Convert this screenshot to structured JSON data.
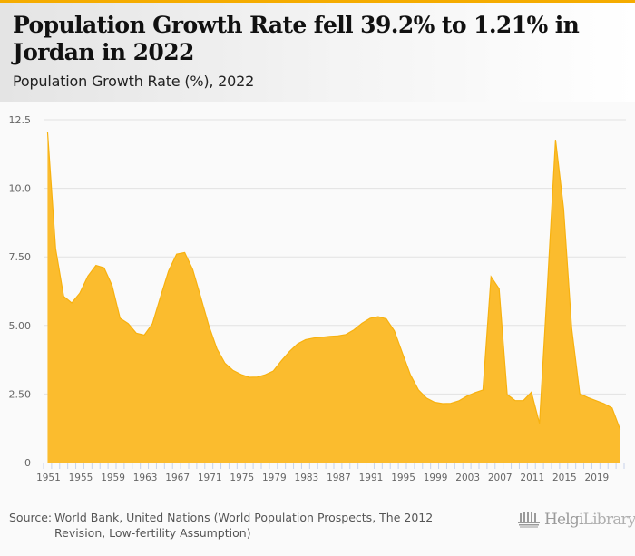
{
  "header": {
    "title": "Population Growth Rate fell 39.2% to 1.21% in Jordan in 2022",
    "subtitle": "Population Growth Rate (%), 2022"
  },
  "footer": {
    "source_label": "Source:",
    "source_text": "World Bank, United Nations (World Population Prospects, The 2012 Revision, Low-fertility Assumption)",
    "logo_bold": "Helgi",
    "logo_light": "Library."
  },
  "colors": {
    "accent": "#f5ac00",
    "area_fill": "#fbbc2e",
    "area_stroke": "#f7b10f",
    "grid": "#e2e2e2",
    "axis": "#c8d3ea",
    "tick_label": "#666666"
  },
  "chart_data": {
    "type": "area",
    "title": "Population Growth Rate (%), 2022",
    "xlabel": "",
    "ylabel": "",
    "ylim": [
      0,
      12.5
    ],
    "yticks": [
      0,
      2.5,
      5.0,
      7.5,
      10.0,
      12.5
    ],
    "ytick_labels": [
      "0",
      "2.50",
      "5.00",
      "7.50",
      "10.0",
      "12.5"
    ],
    "x_tick_labels": [
      "1951",
      "1955",
      "1959",
      "1963",
      "1967",
      "1971",
      "1975",
      "1979",
      "1983",
      "1987",
      "1991",
      "1995",
      "1999",
      "2003",
      "2007",
      "2011",
      "2015",
      "2019"
    ],
    "grid": true,
    "legend": "none",
    "series": [
      {
        "name": "Population Growth Rate (%)",
        "x": [
          1951,
          1952,
          1953,
          1954,
          1955,
          1956,
          1957,
          1958,
          1959,
          1960,
          1961,
          1962,
          1963,
          1964,
          1965,
          1966,
          1967,
          1968,
          1969,
          1970,
          1971,
          1972,
          1973,
          1974,
          1975,
          1976,
          1977,
          1978,
          1979,
          1980,
          1981,
          1982,
          1983,
          1984,
          1985,
          1986,
          1987,
          1988,
          1989,
          1990,
          1991,
          1992,
          1993,
          1994,
          1995,
          1996,
          1997,
          1998,
          1999,
          2000,
          2001,
          2002,
          2003,
          2004,
          2005,
          2006,
          2007,
          2008,
          2009,
          2010,
          2011,
          2012,
          2013,
          2014,
          2015,
          2016,
          2017,
          2018,
          2019,
          2020,
          2021,
          2022
        ],
        "values": [
          12.07,
          7.8,
          6.06,
          5.82,
          6.18,
          6.8,
          7.19,
          7.1,
          6.45,
          5.26,
          5.07,
          4.72,
          4.65,
          5.06,
          6.04,
          6.98,
          7.6,
          7.66,
          7.04,
          6.03,
          4.99,
          4.15,
          3.62,
          3.36,
          3.21,
          3.11,
          3.12,
          3.2,
          3.34,
          3.71,
          4.05,
          4.33,
          4.48,
          4.54,
          4.57,
          4.6,
          4.62,
          4.67,
          4.84,
          5.08,
          5.26,
          5.32,
          5.24,
          4.8,
          3.99,
          3.2,
          2.65,
          2.35,
          2.2,
          2.15,
          2.16,
          2.25,
          2.42,
          2.55,
          2.65,
          6.78,
          6.34,
          2.48,
          2.26,
          2.26,
          2.57,
          1.43,
          6.5,
          11.77,
          9.26,
          4.9,
          2.51,
          2.37,
          2.26,
          2.15,
          1.99,
          1.21
        ]
      }
    ]
  }
}
